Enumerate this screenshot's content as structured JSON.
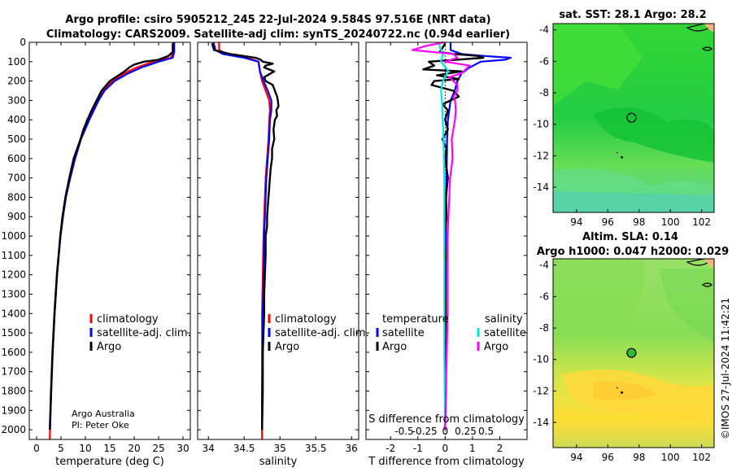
{
  "titles": {
    "line1": "Argo profile: csiro 5905212_245 22-Jul-2024 9.584S 97.516E (NRT data)",
    "line2": "Climatology: CARS2009. Satellite-adj clim: synTS_20240722.nc (0.94d earlier)",
    "sst": "sat. SST: 28.1 Argo: 28.2",
    "sla1": "Altim. SLA: 0.14",
    "sla2": "Argo h1000: 0.047 h2000: 0.029"
  },
  "credit": {
    "line1": "Argo Australia",
    "line2": "PI: Peter Oke"
  },
  "watermark": "©IMOS 27-Jul-2024 11:42:21",
  "colors": {
    "climatology": "#ff0000",
    "satellite": "#0000ff",
    "argo": "#000000",
    "sal_satellite": "#00e5e5",
    "sal_argo": "#ff00ff"
  },
  "chart_data": [
    {
      "type": "line",
      "panel": "temperature",
      "xlabel": "temperature (deg C)",
      "xlim": [
        -1.5,
        31.5
      ],
      "xticks": [
        0,
        5,
        10,
        15,
        20,
        25,
        30
      ],
      "xtick_labels": [
        "0",
        "5",
        "10",
        "15",
        "20",
        "25",
        "30"
      ],
      "ylim": [
        0,
        2050
      ],
      "yticks": [
        0,
        100,
        200,
        300,
        400,
        500,
        600,
        700,
        800,
        900,
        1000,
        1100,
        1200,
        1300,
        1400,
        1500,
        1600,
        1700,
        1800,
        1900,
        2000
      ],
      "ytick_labels": [
        "0",
        "100",
        "200",
        "300",
        "400",
        "500",
        "600",
        "700",
        "800",
        "900",
        "1000",
        "1100",
        "1200",
        "1300",
        "1400",
        "1500",
        "1600",
        "1700",
        "1800",
        "1900",
        "2000"
      ],
      "legend": [
        "climatology",
        "satellite-adj. clim.",
        "Argo"
      ],
      "series": [
        {
          "name": "climatology",
          "depth": [
            0,
            50,
            80,
            100,
            130,
            160,
            200,
            250,
            300,
            400,
            500,
            600,
            700,
            800,
            900,
            1000,
            1200,
            1400,
            1600,
            1800,
            2000,
            2050
          ],
          "values": [
            28.0,
            28.0,
            27.5,
            24.0,
            20.5,
            18.0,
            15.5,
            13.5,
            12.5,
            10.7,
            9.0,
            7.8,
            6.8,
            6.0,
            5.4,
            4.9,
            4.2,
            3.7,
            3.3,
            3.0,
            2.75,
            2.7
          ]
        },
        {
          "name": "satellite-adj. clim.",
          "depth": [
            0,
            50,
            80,
            100,
            130,
            160,
            200,
            250,
            300,
            400,
            500,
            600,
            700,
            800,
            900,
            1000,
            1200,
            1400,
            1600,
            1800,
            2000
          ],
          "values": [
            28.2,
            28.2,
            27.9,
            25.0,
            21.5,
            18.8,
            16.0,
            13.9,
            12.7,
            10.8,
            9.1,
            7.9,
            6.9,
            6.0,
            5.4,
            4.9,
            4.2,
            3.7,
            3.3,
            3.0,
            2.75
          ]
        },
        {
          "name": "Argo",
          "depth": [
            5,
            50,
            70,
            90,
            100,
            115,
            130,
            150,
            175,
            200,
            250,
            300,
            350,
            400,
            450,
            500,
            600,
            700,
            800,
            900,
            1000,
            1200,
            1400,
            1600,
            1800,
            2000
          ],
          "values": [
            27.9,
            27.9,
            27.0,
            25.0,
            22.0,
            20.0,
            19.0,
            18.0,
            16.5,
            15.0,
            13.3,
            12.3,
            11.3,
            10.4,
            9.6,
            9.0,
            7.6,
            6.7,
            5.9,
            5.3,
            4.85,
            4.15,
            3.65,
            3.25,
            2.95,
            2.7
          ]
        }
      ]
    },
    {
      "type": "line",
      "panel": "salinity",
      "xlabel": "salinity",
      "xlim": [
        33.85,
        36.1
      ],
      "xticks": [
        34,
        34.5,
        35,
        35.5,
        36
      ],
      "xtick_labels": [
        "34",
        "34.5",
        "35",
        "35.5",
        "36"
      ],
      "ylim": [
        0,
        2050
      ],
      "legend": [
        "climatology",
        "satellite-adj. clim.",
        "Argo"
      ],
      "series": [
        {
          "name": "climatology",
          "depth": [
            0,
            40,
            60,
            80,
            100,
            150,
            200,
            250,
            300,
            350,
            400,
            500,
            600,
            700,
            800,
            900,
            1000,
            1200,
            1400,
            1600,
            1800,
            2000,
            2050
          ],
          "values": [
            34.15,
            34.15,
            34.25,
            34.55,
            34.7,
            34.72,
            34.75,
            34.8,
            34.85,
            34.86,
            34.85,
            34.84,
            34.82,
            34.8,
            34.79,
            34.78,
            34.77,
            34.76,
            34.75,
            34.75,
            34.75,
            34.75,
            34.75
          ]
        },
        {
          "name": "satellite-adj. clim.",
          "depth": [
            0,
            40,
            60,
            80,
            100,
            150,
            200,
            250,
            300,
            350,
            400,
            500,
            600,
            700,
            800,
            900,
            1000,
            1200,
            1400,
            1600,
            1800,
            2000
          ],
          "values": [
            34.07,
            34.1,
            34.2,
            34.5,
            34.7,
            34.72,
            34.77,
            34.83,
            34.88,
            34.88,
            34.86,
            34.85,
            34.83,
            34.81,
            34.8,
            34.79,
            34.78,
            34.77,
            34.76,
            34.76,
            34.75,
            34.75
          ]
        },
        {
          "name": "Argo",
          "depth": [
            5,
            40,
            60,
            80,
            90,
            100,
            110,
            120,
            130,
            150,
            180,
            200,
            220,
            250,
            280,
            300,
            330,
            350,
            380,
            400,
            450,
            500,
            550,
            600,
            650,
            700,
            750,
            800,
            850,
            900,
            950,
            1000,
            1100,
            1200,
            1300,
            1400,
            1500,
            1600,
            1800,
            2000
          ],
          "values": [
            34.05,
            34.08,
            34.3,
            34.66,
            34.73,
            34.76,
            34.9,
            34.8,
            34.78,
            34.92,
            34.78,
            34.8,
            34.9,
            34.93,
            34.96,
            34.97,
            34.98,
            34.95,
            34.96,
            34.93,
            34.91,
            34.92,
            34.89,
            34.89,
            34.87,
            34.86,
            34.85,
            34.84,
            34.83,
            34.82,
            34.82,
            34.8,
            34.8,
            34.79,
            34.78,
            34.78,
            34.77,
            34.76,
            34.76,
            34.75
          ]
        }
      ]
    },
    {
      "type": "line",
      "panel": "difference",
      "xlabel": "T difference from climatology",
      "xlabel2": "S difference from climatology",
      "xlim": [
        -2.9,
        3.0
      ],
      "xticks": [
        -2,
        -1,
        0,
        1,
        2
      ],
      "xtick_labels": [
        "-2",
        "-1",
        "0",
        "1",
        "2"
      ],
      "sticks": [
        -0.5,
        -0.25,
        0,
        0.25,
        0.5
      ],
      "stick_labels": [
        "-0.5",
        "-0.25",
        "0",
        "0.25",
        "0.5"
      ],
      "ylim": [
        0,
        2050
      ],
      "legend_groups": [
        "temperature",
        "salinity"
      ],
      "legend_temp": [
        "satellite",
        "Argo"
      ],
      "legend_sal": [
        "satellite",
        "Argo"
      ],
      "series": [
        {
          "name": "temperature satellite",
          "depth": [
            0,
            40,
            60,
            70,
            80,
            90,
            100,
            130,
            160,
            200,
            250,
            300,
            400,
            500,
            700,
            900,
            1200,
            1500,
            1800,
            2000
          ],
          "values": [
            0.2,
            0.2,
            0.6,
            1.4,
            2.4,
            2.2,
            1.3,
            0.9,
            0.6,
            0.45,
            0.35,
            0.2,
            0.1,
            0.07,
            0.05,
            0.03,
            0.02,
            0.01,
            0.01,
            0.0
          ]
        },
        {
          "name": "temperature Argo",
          "depth": [
            5,
            30,
            50,
            60,
            70,
            80,
            90,
            100,
            120,
            140,
            150,
            170,
            190,
            200,
            220,
            250,
            280,
            300,
            320,
            350,
            400,
            450,
            500,
            550,
            600,
            700,
            800,
            900,
            1000,
            1100,
            1200,
            1400,
            1600,
            1800,
            2000
          ],
          "values": [
            0.0,
            -0.1,
            -0.2,
            0.3,
            1.2,
            1.4,
            0.4,
            -0.6,
            -0.4,
            -0.8,
            0.6,
            -0.3,
            0.5,
            -0.4,
            -0.5,
            0.3,
            0.5,
            0.2,
            -0.1,
            0.1,
            0.0,
            0.1,
            -0.1,
            0.05,
            0.0,
            0.1,
            0.03,
            0.05,
            -0.02,
            0.02,
            0.0,
            0.02,
            -0.01,
            0.02,
            0.0
          ]
        },
        {
          "name": "salinity satellite",
          "depth": [
            0,
            30,
            60,
            100,
            150,
            200,
            250,
            300,
            400,
            500,
            700,
            1000,
            1300,
            1600,
            2000
          ],
          "values": [
            -0.08,
            -0.06,
            -0.03,
            -0.05,
            0.04,
            -0.03,
            -0.05,
            -0.04,
            -0.03,
            -0.02,
            -0.01,
            -0.01,
            -0.01,
            -0.01,
            0.0
          ]
        },
        {
          "name": "salinity Argo",
          "depth": [
            0,
            20,
            40,
            60,
            80,
            100,
            120,
            140,
            160,
            180,
            200,
            220,
            250,
            280,
            300,
            350,
            400,
            450,
            500,
            600,
            700,
            800,
            900,
            1000,
            1200,
            1400,
            1600,
            1800,
            2000
          ],
          "values": [
            -0.02,
            -0.25,
            -0.4,
            0.1,
            0.15,
            0.0,
            0.3,
            0.25,
            0.2,
            0.05,
            0.1,
            0.15,
            0.15,
            0.1,
            0.12,
            0.13,
            0.12,
            0.1,
            0.08,
            0.09,
            0.06,
            0.05,
            0.04,
            0.03,
            0.03,
            0.03,
            0.02,
            0.01,
            0.0
          ]
        }
      ]
    },
    {
      "type": "heatmap",
      "panel": "sst-map",
      "title": "sat. SST: 28.1 Argo: 28.2",
      "xlim": [
        92.5,
        102.8
      ],
      "ylim": [
        -15.6,
        -3.6
      ],
      "xticks": [
        94,
        96,
        98,
        100,
        102
      ],
      "xtick_labels": [
        "94",
        "96",
        "98",
        "100",
        "102"
      ],
      "yticks": [
        -4,
        -6,
        -8,
        -10,
        -12,
        -14
      ],
      "ytick_labels": [
        "-4",
        "-6",
        "-8",
        "-10",
        "-12",
        "-14"
      ],
      "argo_position": [
        97.516,
        -9.584
      ]
    },
    {
      "type": "heatmap",
      "panel": "sla-map",
      "title": "Altim. SLA: 0.14",
      "xlim": [
        92.5,
        102.8
      ],
      "ylim": [
        -15.6,
        -3.6
      ],
      "xticks": [
        94,
        96,
        98,
        100,
        102
      ],
      "xtick_labels": [
        "94",
        "96",
        "98",
        "100",
        "102"
      ],
      "yticks": [
        -4,
        -6,
        -8,
        -10,
        -12,
        -14
      ],
      "ytick_labels": [
        "-4",
        "-6",
        "-8",
        "-10",
        "-12",
        "-14"
      ],
      "argo_position": [
        97.516,
        -9.584
      ]
    }
  ]
}
